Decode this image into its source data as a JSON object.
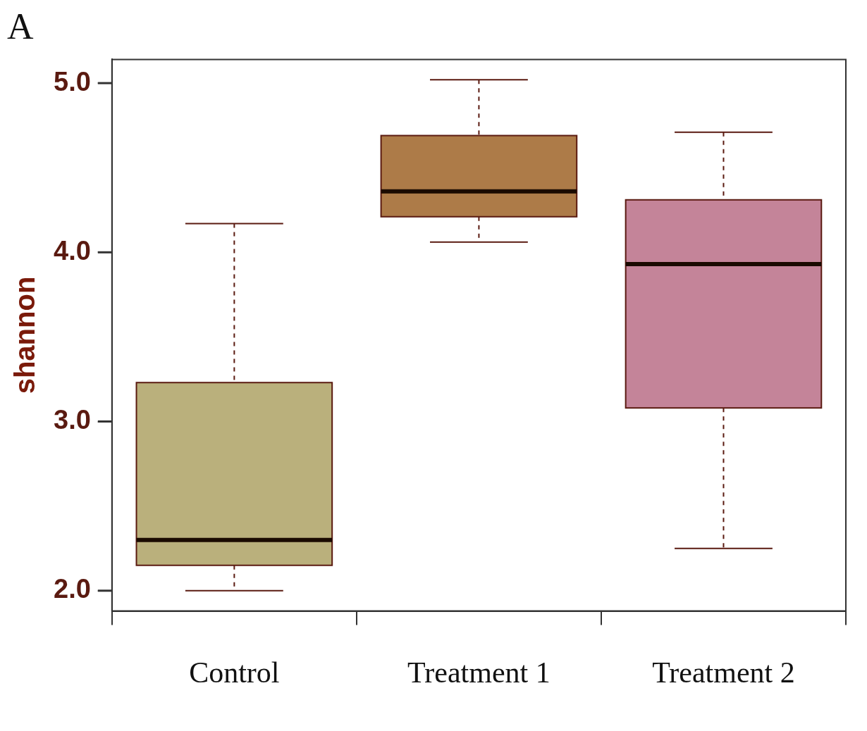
{
  "chart_data": {
    "type": "box",
    "title": "A",
    "ylabel": "shannon",
    "categories": [
      "Control",
      "Treatment 1",
      "Treatment 2"
    ],
    "boxes": [
      {
        "low": 2.0,
        "q1": 2.15,
        "median": 2.3,
        "q3": 3.23,
        "high": 4.17
      },
      {
        "low": 4.06,
        "q1": 4.21,
        "median": 4.36,
        "q3": 4.69,
        "high": 5.02
      },
      {
        "low": 2.25,
        "q1": 3.08,
        "median": 3.93,
        "q3": 4.31,
        "high": 4.71
      }
    ],
    "colors": [
      "#bab07c",
      "#ad7b48",
      "#c48499"
    ],
    "ylim": [
      1.88,
      5.14
    ],
    "yticks": [
      {
        "value": 2.0,
        "label": "2.0"
      },
      {
        "value": 3.0,
        "label": "3.0"
      },
      {
        "value": 4.0,
        "label": "4.0"
      },
      {
        "value": 5.0,
        "label": "5.0"
      }
    ],
    "grid": false
  }
}
